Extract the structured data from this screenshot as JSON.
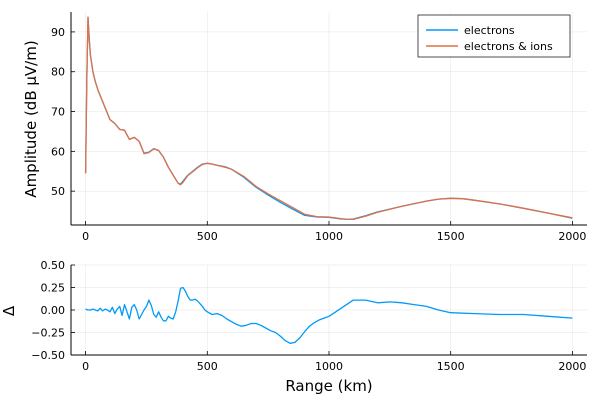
{
  "chart_data": [
    {
      "type": "line",
      "xlabel": "",
      "ylabel": "Amplitude (dB μV/m)",
      "xlim": [
        -60,
        2060
      ],
      "ylim": [
        41.5,
        95
      ],
      "xticks": [
        0,
        500,
        1000,
        1500,
        2000
      ],
      "yticks": [
        50,
        60,
        70,
        80,
        90
      ],
      "grid": true,
      "legend": "top-right",
      "series": [
        {
          "name": "electrons",
          "color": "#009af9",
          "x": [
            0,
            5,
            10,
            15,
            20,
            30,
            40,
            50,
            60,
            80,
            100,
            120,
            140,
            160,
            180,
            200,
            220,
            240,
            260,
            280,
            300,
            320,
            340,
            360,
            380,
            390,
            400,
            420,
            440,
            460,
            480,
            500,
            520,
            540,
            560,
            580,
            600,
            650,
            700,
            750,
            800,
            850,
            900,
            950,
            1000,
            1050,
            1080,
            1100,
            1150,
            1200,
            1300,
            1400,
            1450,
            1500,
            1550,
            1600,
            1700,
            1800,
            1900,
            2000
          ],
          "y": [
            54.5,
            78,
            93.7,
            88,
            84,
            80,
            77.5,
            75.5,
            74,
            71,
            68,
            67,
            65.5,
            65.3,
            63,
            63.5,
            62.5,
            59.5,
            59.8,
            60.7,
            60.2,
            58.5,
            56,
            54,
            52,
            51.8,
            52.5,
            54,
            55,
            56,
            56.8,
            57,
            56.8,
            56.5,
            56.3,
            56,
            55.5,
            53.5,
            51,
            49,
            47.2,
            45.5,
            43.9,
            43.5,
            43.4,
            43,
            42.9,
            43,
            43.8,
            44.8,
            46.2,
            47.5,
            48,
            48.2,
            48.1,
            47.7,
            46.8,
            45.7,
            44.5,
            43.2
          ]
        },
        {
          "name": "electrons & ions",
          "color": "#e26f46",
          "x": [
            0,
            5,
            10,
            15,
            20,
            30,
            40,
            50,
            60,
            80,
            100,
            120,
            140,
            160,
            180,
            200,
            220,
            240,
            260,
            280,
            300,
            320,
            340,
            360,
            380,
            390,
            400,
            420,
            440,
            460,
            480,
            500,
            520,
            540,
            560,
            580,
            600,
            650,
            700,
            750,
            800,
            850,
            900,
            950,
            1000,
            1050,
            1080,
            1100,
            1150,
            1200,
            1300,
            1400,
            1450,
            1500,
            1550,
            1600,
            1700,
            1800,
            1900,
            2000
          ],
          "y": [
            54.5,
            78,
            93.7,
            88,
            84,
            80,
            77.5,
            75.5,
            74,
            71,
            68,
            67,
            65.5,
            65.3,
            63,
            63.5,
            62.5,
            59.4,
            59.7,
            60.6,
            60.2,
            58.5,
            56,
            54,
            52,
            51.6,
            52.2,
            53.9,
            54.9,
            55.9,
            56.7,
            57,
            56.8,
            56.5,
            56.2,
            55.9,
            55.5,
            53.7,
            51.2,
            49.3,
            47.6,
            45.9,
            44.2,
            43.6,
            43.5,
            43.1,
            42.9,
            42.9,
            43.7,
            44.7,
            46.2,
            47.5,
            48,
            48.2,
            48.1,
            47.7,
            46.8,
            45.7,
            44.5,
            43.3
          ]
        }
      ]
    },
    {
      "type": "line",
      "xlabel": "Range (km)",
      "ylabel": "Δ",
      "xlim": [
        -60,
        2060
      ],
      "ylim": [
        -0.5,
        0.5
      ],
      "xticks": [
        0,
        500,
        1000,
        1500,
        2000
      ],
      "yticks": [
        -0.5,
        -0.25,
        0.0,
        0.25,
        0.5
      ],
      "yticklabels": [
        "−0.50",
        "−0.25",
        "0.00",
        "0.25",
        "0.50"
      ],
      "grid": true,
      "legend": "none",
      "series": [
        {
          "color": "#009af9",
          "x": [
            0,
            10,
            20,
            30,
            40,
            50,
            60,
            70,
            80,
            90,
            100,
            110,
            120,
            130,
            140,
            150,
            160,
            170,
            180,
            190,
            200,
            210,
            220,
            230,
            240,
            250,
            260,
            270,
            280,
            290,
            300,
            310,
            320,
            330,
            340,
            350,
            360,
            370,
            380,
            390,
            400,
            410,
            420,
            430,
            440,
            450,
            460,
            470,
            480,
            490,
            500,
            520,
            540,
            560,
            580,
            600,
            620,
            640,
            660,
            680,
            700,
            720,
            740,
            760,
            780,
            800,
            820,
            840,
            860,
            880,
            900,
            920,
            940,
            960,
            980,
            1000,
            1050,
            1100,
            1150,
            1200,
            1250,
            1300,
            1350,
            1400,
            1450,
            1500,
            1600,
            1700,
            1800,
            1900,
            2000
          ],
          "y": [
            0.01,
            0.0,
            0.0,
            0.01,
            0.0,
            -0.01,
            0.02,
            -0.01,
            0.01,
            0.0,
            -0.02,
            0.03,
            -0.04,
            0.01,
            0.04,
            -0.06,
            0.06,
            -0.02,
            -0.1,
            0.03,
            0.06,
            0.0,
            -0.1,
            -0.05,
            0.0,
            0.04,
            0.11,
            0.05,
            -0.05,
            -0.08,
            -0.02,
            -0.08,
            -0.12,
            -0.12,
            -0.07,
            -0.09,
            -0.1,
            -0.02,
            0.1,
            0.24,
            0.25,
            0.21,
            0.15,
            0.11,
            0.11,
            0.12,
            0.1,
            0.07,
            0.04,
            0.0,
            -0.02,
            -0.05,
            -0.04,
            -0.06,
            -0.1,
            -0.13,
            -0.16,
            -0.18,
            -0.17,
            -0.15,
            -0.15,
            -0.17,
            -0.2,
            -0.23,
            -0.25,
            -0.29,
            -0.34,
            -0.37,
            -0.36,
            -0.31,
            -0.24,
            -0.18,
            -0.14,
            -0.11,
            -0.09,
            -0.07,
            0.02,
            0.11,
            0.11,
            0.08,
            0.09,
            0.08,
            0.06,
            0.04,
            0.0,
            -0.03,
            -0.04,
            -0.05,
            -0.05,
            -0.07,
            -0.09
          ]
        }
      ]
    }
  ]
}
